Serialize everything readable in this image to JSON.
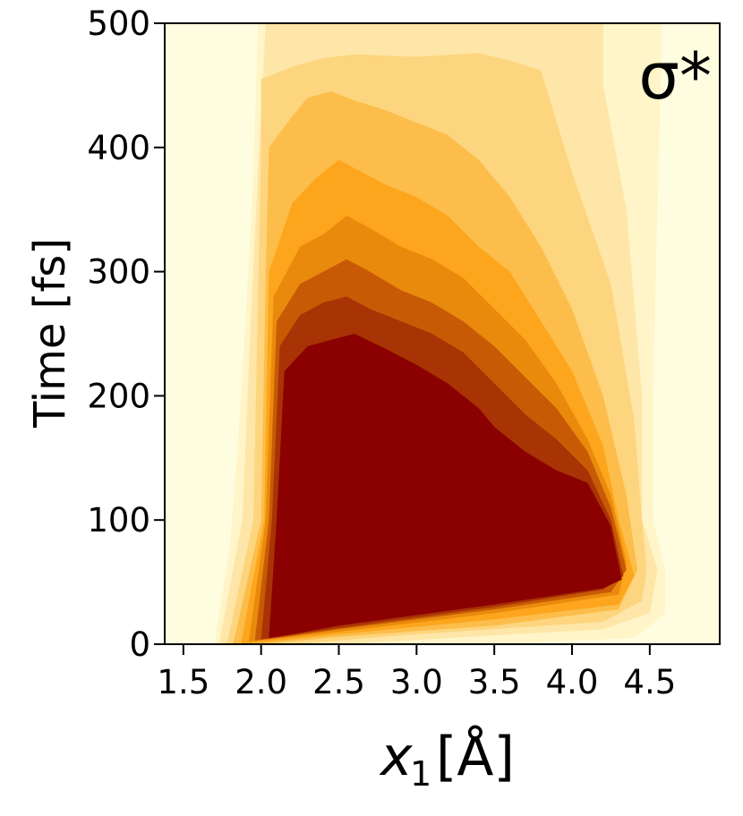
{
  "chart_data": {
    "type": "contour",
    "annotation": "σ*",
    "xlabel": {
      "symbol": "x",
      "subscript": "1",
      "unit": "[Å]"
    },
    "ylabel": "Time [fs]",
    "xlim": [
      1.38,
      4.95
    ],
    "ylim": [
      0,
      500
    ],
    "xticks": [
      "1.5",
      "2.0",
      "2.5",
      "3.0",
      "3.5",
      "4.0",
      "4.5"
    ],
    "xtick_values": [
      1.5,
      2.0,
      2.5,
      3.0,
      3.5,
      4.0,
      4.5
    ],
    "yticks": [
      "0",
      "100",
      "200",
      "300",
      "400",
      "500"
    ],
    "ytick_values": [
      0,
      100,
      200,
      300,
      400,
      500
    ],
    "background_color": "#fffde0",
    "grid": false,
    "levels": [
      {
        "level": 1,
        "color": "#fff5c8",
        "left": [
          [
            1.7,
            0
          ],
          [
            1.8,
            80
          ],
          [
            1.85,
            160
          ],
          [
            1.9,
            260
          ],
          [
            1.95,
            380
          ],
          [
            1.98,
            500
          ]
        ],
        "right": [
          [
            4.58,
            500
          ],
          [
            4.55,
            350
          ],
          [
            4.52,
            200
          ],
          [
            4.52,
            100
          ],
          [
            4.6,
            60
          ],
          [
            4.6,
            25
          ],
          [
            4.4,
            5
          ],
          [
            3.5,
            0
          ]
        ]
      },
      {
        "level": 2,
        "color": "#fee6a8",
        "left": [
          [
            1.73,
            0
          ],
          [
            1.88,
            100
          ],
          [
            1.93,
            250
          ],
          [
            1.98,
            380
          ],
          [
            2.03,
            500
          ]
        ],
        "right": [
          [
            4.2,
            500
          ],
          [
            4.2,
            450
          ],
          [
            4.35,
            350
          ],
          [
            4.45,
            200
          ],
          [
            4.45,
            100
          ],
          [
            4.55,
            60
          ],
          [
            4.5,
            25
          ],
          [
            4.2,
            12
          ],
          [
            3.2,
            5
          ],
          [
            2.5,
            0
          ]
        ]
      },
      {
        "level": 3,
        "color": "#fdd57e",
        "left": [
          [
            1.78,
            0
          ],
          [
            1.95,
            100
          ],
          [
            1.98,
            280
          ],
          [
            2.0,
            400
          ],
          [
            2.0,
            455
          ],
          [
            2.2,
            465
          ],
          [
            2.4,
            472
          ],
          [
            2.6,
            475
          ],
          [
            3.0,
            473
          ],
          [
            3.4,
            476
          ],
          [
            3.6,
            470
          ],
          [
            3.8,
            462
          ]
        ],
        "right": [
          [
            3.8,
            462
          ],
          [
            4.0,
            380
          ],
          [
            4.25,
            290
          ],
          [
            4.4,
            180
          ],
          [
            4.45,
            100
          ],
          [
            4.48,
            60
          ],
          [
            4.45,
            35
          ],
          [
            4.2,
            18
          ],
          [
            3.0,
            8
          ],
          [
            2.2,
            0
          ]
        ]
      },
      {
        "level": 4,
        "color": "#fcbd4a",
        "left": [
          [
            1.82,
            0
          ],
          [
            2.0,
            100
          ],
          [
            2.03,
            300
          ],
          [
            2.05,
            400
          ],
          [
            2.2,
            425
          ],
          [
            2.3,
            440
          ],
          [
            2.45,
            445
          ],
          [
            2.6,
            438
          ],
          [
            2.8,
            430
          ],
          [
            3.0,
            420
          ],
          [
            3.2,
            410
          ],
          [
            3.4,
            390
          ]
        ],
        "right": [
          [
            3.4,
            390
          ],
          [
            3.6,
            360
          ],
          [
            3.8,
            320
          ],
          [
            4.0,
            270
          ],
          [
            4.2,
            200
          ],
          [
            4.35,
            120
          ],
          [
            4.42,
            60
          ],
          [
            4.3,
            28
          ],
          [
            3.5,
            15
          ],
          [
            2.5,
            6
          ],
          [
            2.0,
            0
          ]
        ]
      },
      {
        "level": 5,
        "color": "#fda51c",
        "left": [
          [
            1.87,
            0
          ],
          [
            2.02,
            100
          ],
          [
            2.05,
            300
          ],
          [
            2.2,
            355
          ],
          [
            2.35,
            375
          ],
          [
            2.5,
            390
          ],
          [
            2.65,
            380
          ],
          [
            2.8,
            370
          ],
          [
            3.0,
            360
          ],
          [
            3.2,
            345
          ],
          [
            3.4,
            320
          ]
        ],
        "right": [
          [
            3.4,
            320
          ],
          [
            3.6,
            300
          ],
          [
            3.8,
            260
          ],
          [
            4.0,
            220
          ],
          [
            4.2,
            160
          ],
          [
            4.3,
            100
          ],
          [
            4.4,
            55
          ],
          [
            4.3,
            32
          ],
          [
            3.5,
            20
          ],
          [
            2.5,
            8
          ],
          [
            2.05,
            2
          ]
        ]
      },
      {
        "level": 6,
        "color": "#e98a0c",
        "left": [
          [
            1.92,
            2
          ],
          [
            2.03,
            100
          ],
          [
            2.08,
            280
          ],
          [
            2.25,
            320
          ],
          [
            2.4,
            330
          ],
          [
            2.55,
            345
          ],
          [
            2.7,
            335
          ],
          [
            2.9,
            320
          ],
          [
            3.1,
            310
          ],
          [
            3.3,
            295
          ],
          [
            3.5,
            270
          ]
        ],
        "right": [
          [
            3.5,
            270
          ],
          [
            3.7,
            245
          ],
          [
            3.9,
            210
          ],
          [
            4.1,
            165
          ],
          [
            4.25,
            120
          ],
          [
            4.35,
            65
          ],
          [
            4.3,
            40
          ],
          [
            3.5,
            25
          ],
          [
            2.5,
            10
          ],
          [
            2.08,
            4
          ]
        ]
      },
      {
        "level": 7,
        "color": "#c85a05",
        "left": [
          [
            1.96,
            3
          ],
          [
            2.05,
            100
          ],
          [
            2.1,
            260
          ],
          [
            2.25,
            290
          ],
          [
            2.4,
            300
          ],
          [
            2.55,
            310
          ],
          [
            2.7,
            300
          ],
          [
            2.9,
            285
          ],
          [
            3.1,
            275
          ],
          [
            3.3,
            260
          ],
          [
            3.5,
            240
          ]
        ],
        "right": [
          [
            3.5,
            240
          ],
          [
            3.7,
            215
          ],
          [
            3.9,
            190
          ],
          [
            4.1,
            155
          ],
          [
            4.25,
            110
          ],
          [
            4.35,
            60
          ],
          [
            4.25,
            42
          ],
          [
            3.5,
            28
          ],
          [
            2.5,
            12
          ],
          [
            2.1,
            5
          ]
        ]
      },
      {
        "level": 8,
        "color": "#a83305",
        "left": [
          [
            2.0,
            4
          ],
          [
            2.07,
            100
          ],
          [
            2.12,
            240
          ],
          [
            2.25,
            265
          ],
          [
            2.4,
            275
          ],
          [
            2.55,
            280
          ],
          [
            2.7,
            270
          ],
          [
            2.9,
            260
          ],
          [
            3.1,
            250
          ],
          [
            3.3,
            235
          ],
          [
            3.5,
            210
          ]
        ],
        "right": [
          [
            3.5,
            210
          ],
          [
            3.7,
            185
          ],
          [
            3.9,
            165
          ],
          [
            4.1,
            140
          ],
          [
            4.25,
            100
          ],
          [
            4.33,
            55
          ],
          [
            4.2,
            44
          ],
          [
            3.5,
            30
          ],
          [
            2.5,
            13
          ],
          [
            2.12,
            6
          ]
        ]
      },
      {
        "level": 9,
        "color": "#8b0000",
        "left": [
          [
            2.05,
            5
          ],
          [
            2.1,
            100
          ],
          [
            2.15,
            220
          ],
          [
            2.3,
            240
          ],
          [
            2.45,
            245
          ],
          [
            2.6,
            250
          ],
          [
            2.8,
            238
          ],
          [
            3.0,
            225
          ],
          [
            3.2,
            210
          ],
          [
            3.4,
            190
          ],
          [
            3.5,
            175
          ]
        ],
        "right": [
          [
            3.5,
            175
          ],
          [
            3.7,
            155
          ],
          [
            3.9,
            140
          ],
          [
            4.1,
            130
          ],
          [
            4.25,
            95
          ],
          [
            4.32,
            52
          ],
          [
            4.2,
            45
          ],
          [
            3.5,
            32
          ],
          [
            2.5,
            15
          ],
          [
            2.2,
            8
          ]
        ]
      }
    ]
  }
}
